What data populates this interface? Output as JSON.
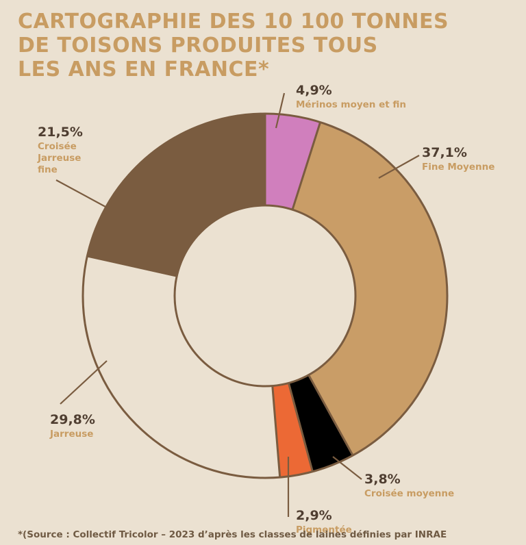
{
  "title_lines": [
    "CARTOGRAPHIE DES 10 100 TONNES",
    "DE TOISONS PRODUITES TOUS",
    "LES ANS EN FRANCE*"
  ],
  "source": "*(Source : Collectif Tricolor – 2023 d’après les classes de laines définies par INRAE",
  "colors": {
    "background": "#ebe1d1",
    "title": "#c89c62",
    "outline": "#7a5c40",
    "percent_text": "#4f3e31",
    "label_text": "#c89c62"
  },
  "chart_data": {
    "type": "pie",
    "variant": "donut",
    "title": "CARTOGRAPHIE DES 10 100 TONNES DE TOISONS PRODUITES TOUS LES ANS EN FRANCE*",
    "slices": [
      {
        "percent": "4,9%",
        "value": 4.9,
        "label_lines": [
          "Mérinos moyen et fin"
        ],
        "color": "#d07fbd"
      },
      {
        "percent": "37,1%",
        "value": 37.1,
        "label_lines": [
          "Fine Moyenne"
        ],
        "color": "#c99d67"
      },
      {
        "percent": "3,8%",
        "value": 3.8,
        "label_lines": [
          "Croisée moyenne"
        ],
        "color": "#000000"
      },
      {
        "percent": "2,9%",
        "value": 2.9,
        "label_lines": [
          "Pigmentée"
        ],
        "color": "#ec6935"
      },
      {
        "percent": "29,8%",
        "value": 29.8,
        "label_lines": [
          "Jarreuse"
        ],
        "color": "#ebe1d1"
      },
      {
        "percent": "21,5%",
        "value": 21.5,
        "label_lines": [
          "Croisée",
          "Jarreuse",
          "fine"
        ],
        "color": "#7a5c40"
      }
    ]
  }
}
